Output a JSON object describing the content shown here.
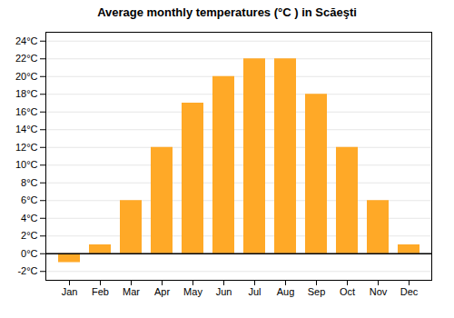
{
  "chart_data": {
    "type": "bar",
    "title": "Average monthly temperatures (°C ) in Scăeşti",
    "categories": [
      "Jan",
      "Feb",
      "Mar",
      "Apr",
      "May",
      "Jun",
      "Jul",
      "Aug",
      "Sep",
      "Oct",
      "Nov",
      "Dec"
    ],
    "values": [
      -1,
      1,
      6,
      12,
      17,
      20,
      22,
      22,
      18,
      12,
      6,
      1
    ],
    "color": "#FFA927",
    "ylim": [
      -3,
      25
    ],
    "yticks": [
      {
        "value": -2,
        "label": "-2°C"
      },
      {
        "value": 0,
        "label": "0°C"
      },
      {
        "value": 2,
        "label": "2°C"
      },
      {
        "value": 4,
        "label": "4°C"
      },
      {
        "value": 6,
        "label": "6°C"
      },
      {
        "value": 8,
        "label": "8°C"
      },
      {
        "value": 10,
        "label": "10°C"
      },
      {
        "value": 12,
        "label": "12°C"
      },
      {
        "value": 14,
        "label": "14°C"
      },
      {
        "value": 16,
        "label": "16°C"
      },
      {
        "value": 18,
        "label": "18°C"
      },
      {
        "value": 20,
        "label": "20°C"
      },
      {
        "value": 22,
        "label": "22°C"
      },
      {
        "value": 24,
        "label": "24°C"
      }
    ],
    "grid": true
  }
}
